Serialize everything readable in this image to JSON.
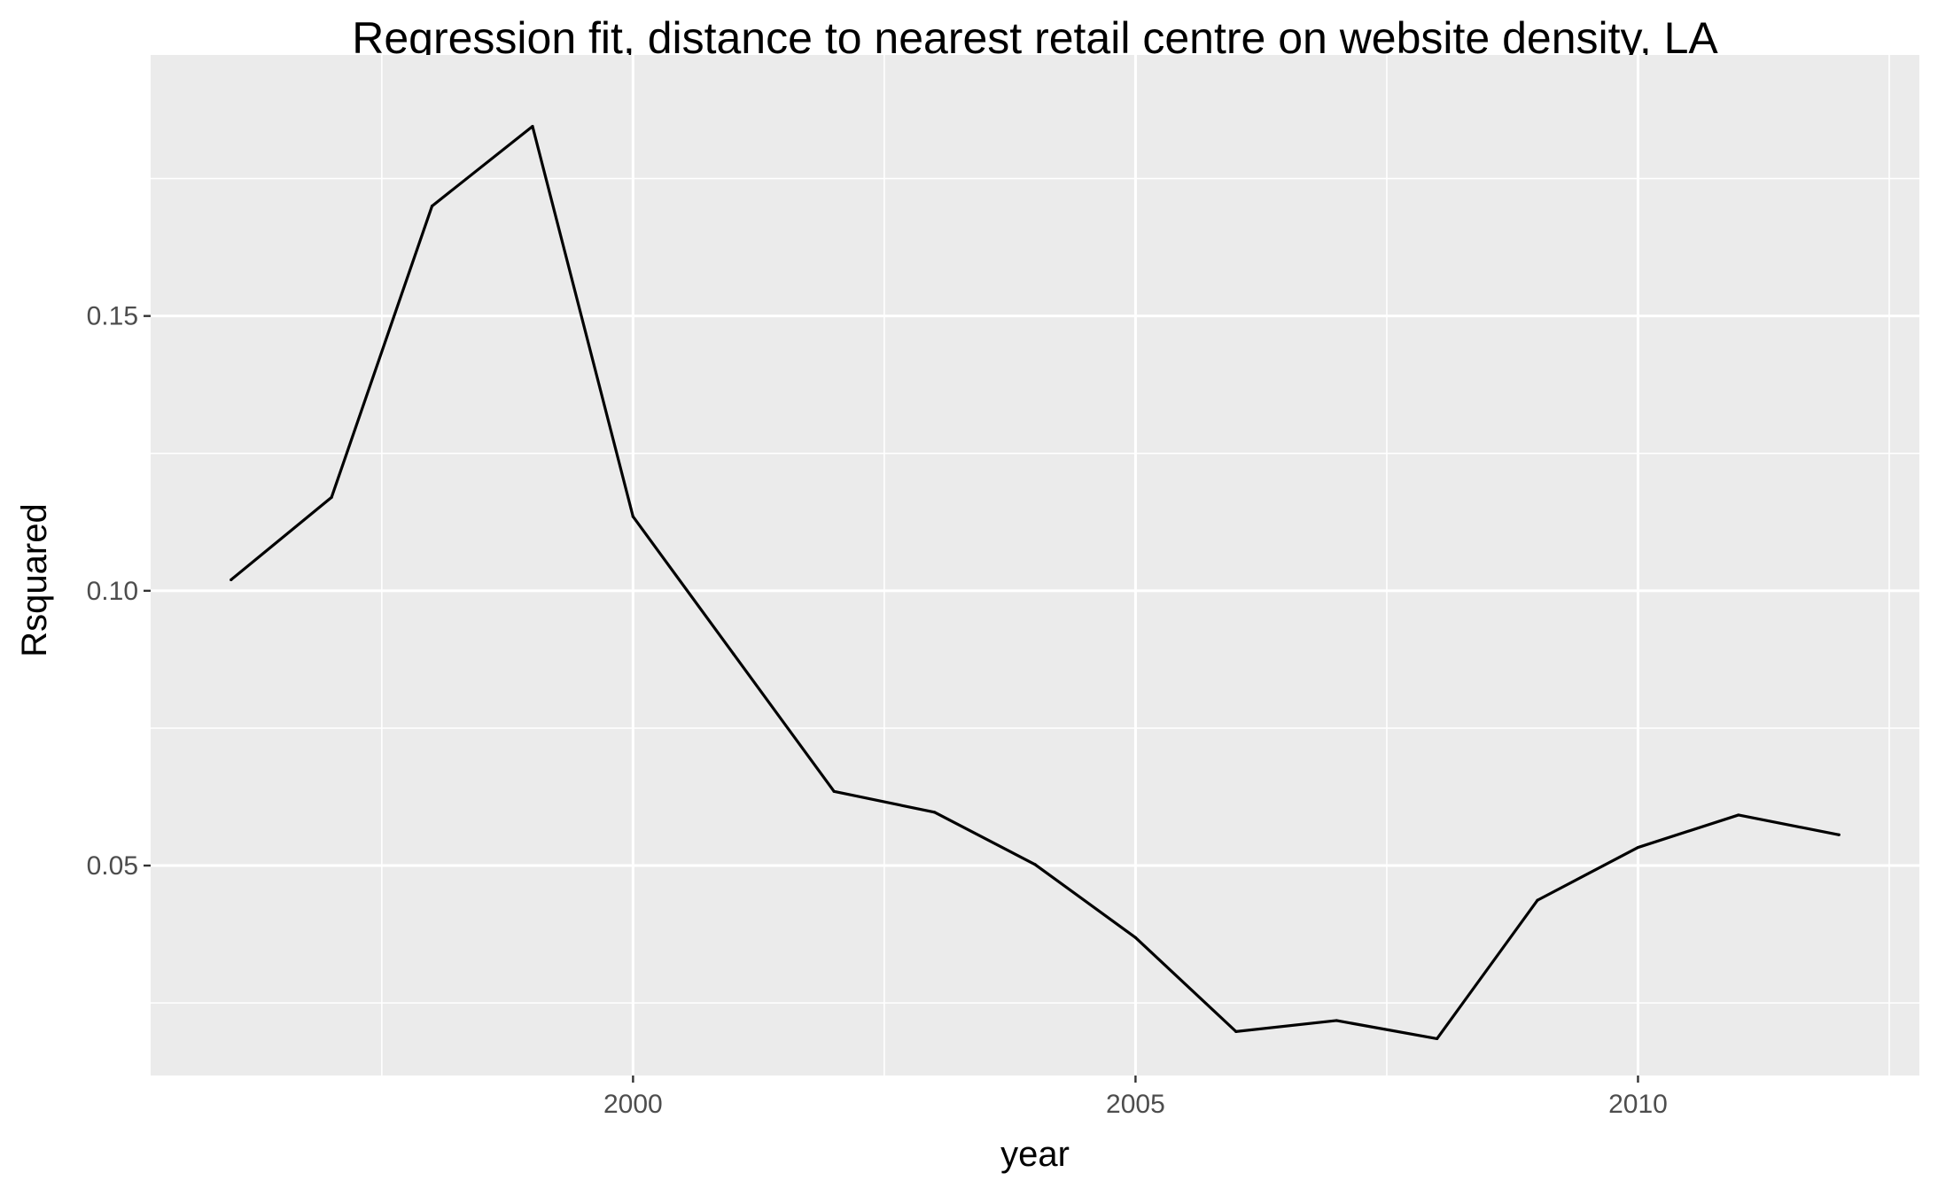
{
  "chart_data": {
    "type": "line",
    "title": "Regression fit, distance to nearest retail centre on website density, LA",
    "xlabel": "year",
    "ylabel": "Rsquared",
    "x": [
      1996,
      1997,
      1998,
      1999,
      2000,
      2001,
      2002,
      2003,
      2004,
      2005,
      2006,
      2007,
      2008,
      2009,
      2010,
      2011,
      2012
    ],
    "series": [
      {
        "values": [
          0.102,
          0.117,
          0.17,
          0.1845,
          0.1135,
          0.0885,
          0.0635,
          0.0597,
          0.0502,
          0.0369,
          0.0198,
          0.0218,
          0.0185,
          0.0437,
          0.0533,
          0.0592,
          0.0556
        ]
      }
    ],
    "xlim": [
      1995.2,
      2012.8
    ],
    "ylim": [
      0.0118,
      0.1975
    ],
    "x_ticks": [
      "2000",
      "2005",
      "2010"
    ],
    "y_ticks": [
      "0.05",
      "0.10",
      "0.15"
    ],
    "grid": true,
    "legend": "none",
    "colors": {
      "panel_background": "#ebebeb",
      "grid_line": "#ffffff",
      "series_line": "#000000",
      "tick_mark": "#333333",
      "tick_label": "#4d4d4d"
    }
  }
}
